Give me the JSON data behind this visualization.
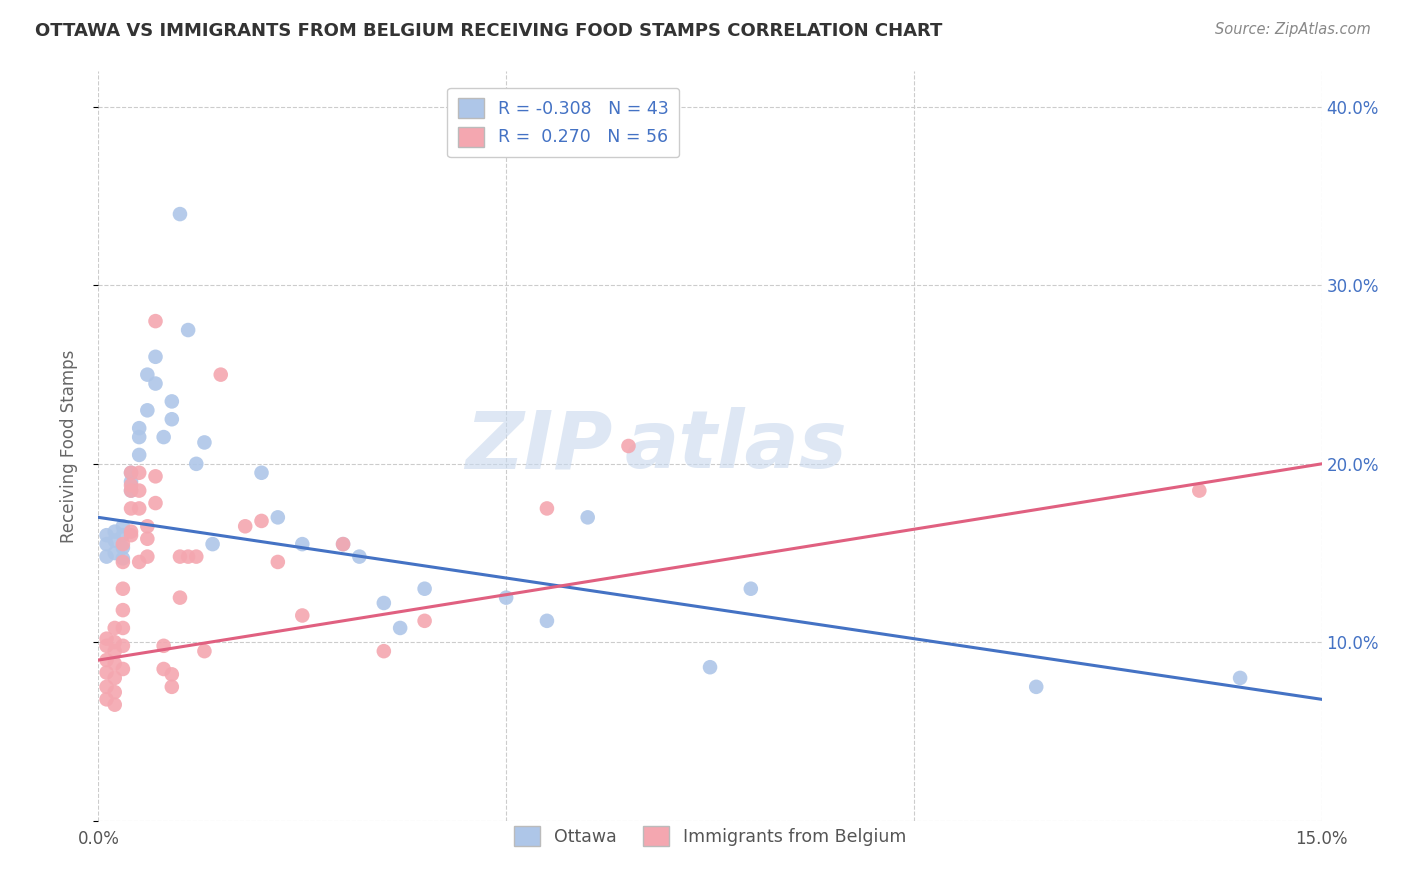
{
  "title": "OTTAWA VS IMMIGRANTS FROM BELGIUM RECEIVING FOOD STAMPS CORRELATION CHART",
  "source": "Source: ZipAtlas.com",
  "ylabel": "Receiving Food Stamps",
  "xlim": [
    0.0,
    0.15
  ],
  "ylim": [
    0.0,
    0.42
  ],
  "grid_color": "#cccccc",
  "background_color": "#ffffff",
  "ottawa_color": "#aec6e8",
  "belgium_color": "#f4a7b0",
  "ottawa_line_color": "#4472c4",
  "belgium_line_color": "#e06080",
  "R_ottawa": -0.308,
  "N_ottawa": 43,
  "R_belgium": 0.27,
  "N_belgium": 56,
  "watermark_zip": "ZIP",
  "watermark_atlas": "atlas",
  "legend_labels": [
    "Ottawa",
    "Immigrants from Belgium"
  ],
  "ottawa_line_x0": 0.0,
  "ottawa_line_y0": 0.17,
  "ottawa_line_x1": 0.15,
  "ottawa_line_y1": 0.068,
  "belgium_line_x0": 0.0,
  "belgium_line_y0": 0.09,
  "belgium_line_x1": 0.15,
  "belgium_line_y1": 0.2,
  "ottawa_scatter_x": [
    0.001,
    0.001,
    0.001,
    0.002,
    0.002,
    0.002,
    0.003,
    0.003,
    0.003,
    0.003,
    0.004,
    0.004,
    0.004,
    0.005,
    0.005,
    0.005,
    0.006,
    0.006,
    0.007,
    0.007,
    0.008,
    0.009,
    0.009,
    0.01,
    0.011,
    0.012,
    0.013,
    0.014,
    0.02,
    0.022,
    0.025,
    0.03,
    0.032,
    0.035,
    0.037,
    0.04,
    0.05,
    0.055,
    0.06,
    0.075,
    0.08,
    0.115,
    0.14
  ],
  "ottawa_scatter_y": [
    0.16,
    0.155,
    0.148,
    0.162,
    0.157,
    0.15,
    0.165,
    0.16,
    0.153,
    0.147,
    0.195,
    0.19,
    0.185,
    0.22,
    0.215,
    0.205,
    0.23,
    0.25,
    0.26,
    0.245,
    0.215,
    0.235,
    0.225,
    0.34,
    0.275,
    0.2,
    0.212,
    0.155,
    0.195,
    0.17,
    0.155,
    0.155,
    0.148,
    0.122,
    0.108,
    0.13,
    0.125,
    0.112,
    0.17,
    0.086,
    0.13,
    0.075,
    0.08
  ],
  "belgium_scatter_x": [
    0.001,
    0.001,
    0.001,
    0.001,
    0.001,
    0.001,
    0.002,
    0.002,
    0.002,
    0.002,
    0.002,
    0.002,
    0.002,
    0.003,
    0.003,
    0.003,
    0.003,
    0.003,
    0.003,
    0.003,
    0.004,
    0.004,
    0.004,
    0.004,
    0.004,
    0.004,
    0.005,
    0.005,
    0.005,
    0.005,
    0.006,
    0.006,
    0.006,
    0.007,
    0.007,
    0.007,
    0.008,
    0.008,
    0.009,
    0.009,
    0.01,
    0.01,
    0.011,
    0.012,
    0.013,
    0.015,
    0.018,
    0.02,
    0.022,
    0.025,
    0.03,
    0.035,
    0.04,
    0.055,
    0.065,
    0.135
  ],
  "belgium_scatter_y": [
    0.102,
    0.098,
    0.09,
    0.083,
    0.075,
    0.068,
    0.108,
    0.1,
    0.095,
    0.088,
    0.08,
    0.072,
    0.065,
    0.155,
    0.145,
    0.13,
    0.118,
    0.108,
    0.098,
    0.085,
    0.16,
    0.185,
    0.195,
    0.188,
    0.175,
    0.162,
    0.195,
    0.185,
    0.175,
    0.145,
    0.165,
    0.158,
    0.148,
    0.28,
    0.193,
    0.178,
    0.098,
    0.085,
    0.082,
    0.075,
    0.148,
    0.125,
    0.148,
    0.148,
    0.095,
    0.25,
    0.165,
    0.168,
    0.145,
    0.115,
    0.155,
    0.095,
    0.112,
    0.175,
    0.21,
    0.185
  ]
}
